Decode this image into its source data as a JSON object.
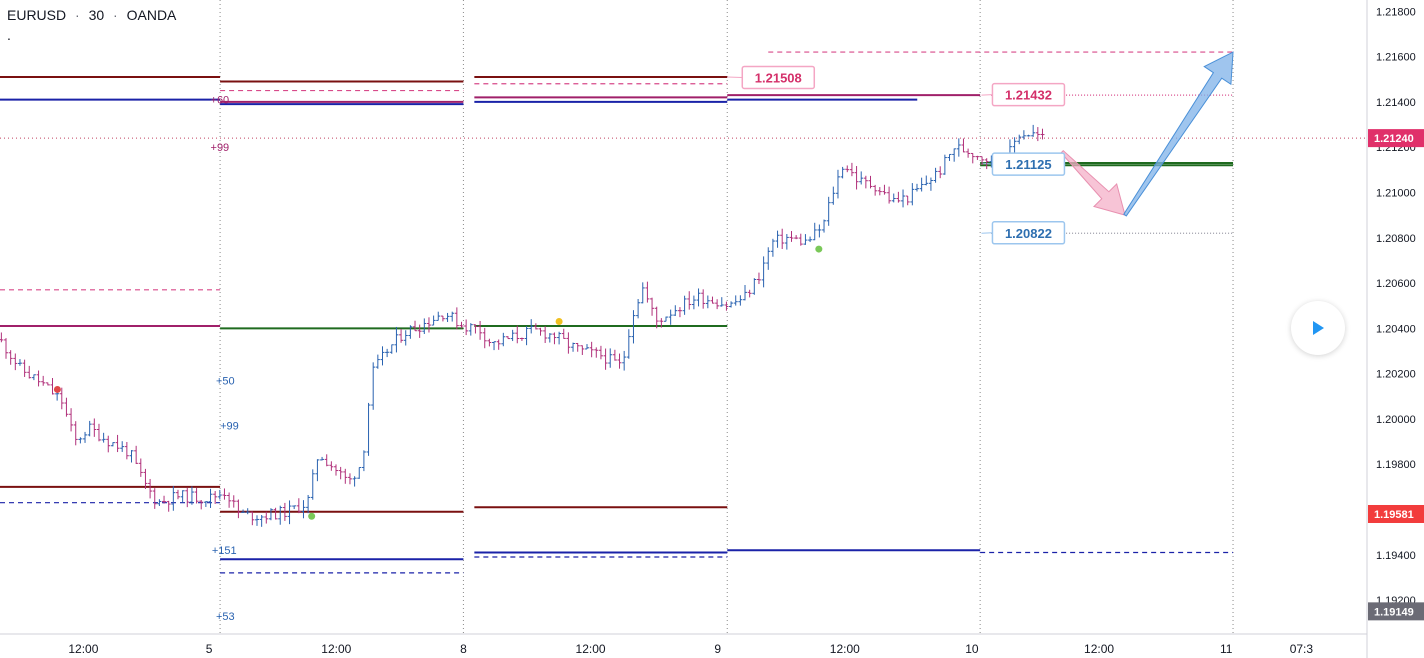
{
  "header": {
    "symbol": "EURUSD",
    "interval": "30",
    "broker": "OANDA",
    "separator": "·",
    "subline": "."
  },
  "colors": {
    "up": "#2962b0",
    "down": "#b0307a",
    "maroon": "#7a1010",
    "navy": "#1a22a8",
    "magenta": "#a0206a",
    "green": "#1f6b1f",
    "pink": "#d84a8a",
    "blue_arrow": "#7fb2e8",
    "pink_arrow": "#f4b0c8",
    "price_badge": "#e0306a",
    "low_badge": "#f23c3c",
    "gray_badge": "#6b6b75"
  },
  "chart_data": {
    "type": "candlestick",
    "y_range": [
      1.1905,
      1.2185
    ],
    "x_range": [
      0,
      100
    ],
    "y_ticks": [
      "1.21800",
      "1.21600",
      "1.21400",
      "1.21200",
      "1.21000",
      "1.20800",
      "1.20600",
      "1.20400",
      "1.20200",
      "1.20000",
      "1.19800",
      "1.19600",
      "1.19400",
      "1.19200"
    ],
    "y_tick_values": [
      1.218,
      1.216,
      1.214,
      1.212,
      1.21,
      1.208,
      1.206,
      1.204,
      1.202,
      1.2,
      1.198,
      1.196,
      1.194,
      1.192
    ],
    "x_ticks": [
      {
        "label": "12:00",
        "x": 6.1
      },
      {
        "label": "5",
        "x": 15.3
      },
      {
        "label": "12:00",
        "x": 24.6
      },
      {
        "label": "8",
        "x": 33.9
      },
      {
        "label": "12:00",
        "x": 43.2
      },
      {
        "label": "9",
        "x": 52.5
      },
      {
        "label": "12:00",
        "x": 61.8
      },
      {
        "label": "10",
        "x": 71.1
      },
      {
        "label": "12:00",
        "x": 80.4
      },
      {
        "label": "11",
        "x": 89.7
      },
      {
        "label": "07:3",
        "x": 95.2
      }
    ],
    "session_separators": [
      16.1,
      33.9,
      53.2,
      71.7,
      90.2
    ],
    "price_badges": [
      {
        "label": "1.21240",
        "value": 1.2124,
        "kind": "price"
      },
      {
        "label": "1.19581",
        "value": 1.1958,
        "kind": "low"
      },
      {
        "label": "1.19149",
        "value": 1.1915,
        "kind": "gray"
      }
    ],
    "current_price": 1.2124,
    "levels": [
      {
        "x1": 0,
        "x2": 16.1,
        "y": 1.2151,
        "color": "maroon",
        "dash": false
      },
      {
        "x1": 0,
        "x2": 16.1,
        "y": 1.2141,
        "color": "navy",
        "dash": false
      },
      {
        "x1": 0,
        "x2": 16.1,
        "y": 1.2057,
        "color": "pink",
        "dash": true
      },
      {
        "x1": 0,
        "x2": 16.1,
        "y": 1.2041,
        "color": "magenta",
        "dash": false
      },
      {
        "x1": 0,
        "x2": 16.1,
        "y": 1.197,
        "color": "maroon",
        "dash": false
      },
      {
        "x1": 0,
        "x2": 16.1,
        "y": 1.1963,
        "color": "navy",
        "dash": true
      },
      {
        "x1": 16.1,
        "x2": 33.9,
        "y": 1.2149,
        "color": "maroon",
        "dash": false
      },
      {
        "x1": 16.1,
        "x2": 33.9,
        "y": 1.2145,
        "color": "pink",
        "dash": true
      },
      {
        "x1": 16.1,
        "x2": 33.9,
        "y": 1.214,
        "color": "magenta",
        "dash": false
      },
      {
        "x1": 16.1,
        "x2": 33.9,
        "y": 1.2139,
        "color": "navy",
        "dash": false
      },
      {
        "x1": 16.1,
        "x2": 33.9,
        "y": 1.204,
        "color": "green",
        "dash": false
      },
      {
        "x1": 16.1,
        "x2": 33.9,
        "y": 1.1959,
        "color": "maroon",
        "dash": false
      },
      {
        "x1": 16.1,
        "x2": 33.9,
        "y": 1.1938,
        "color": "navy",
        "dash": false
      },
      {
        "x1": 16.1,
        "x2": 33.9,
        "y": 1.1932,
        "color": "navy",
        "dash": true
      },
      {
        "x1": 34.7,
        "x2": 53.2,
        "y": 1.2151,
        "color": "maroon",
        "dash": false
      },
      {
        "x1": 34.7,
        "x2": 53.2,
        "y": 1.2148,
        "color": "pink",
        "dash": true
      },
      {
        "x1": 34.7,
        "x2": 53.2,
        "y": 1.2142,
        "color": "magenta",
        "dash": false
      },
      {
        "x1": 34.7,
        "x2": 53.2,
        "y": 1.214,
        "color": "navy",
        "dash": false
      },
      {
        "x1": 34.7,
        "x2": 53.2,
        "y": 1.2041,
        "color": "green",
        "dash": false
      },
      {
        "x1": 34.7,
        "x2": 53.2,
        "y": 1.1961,
        "color": "maroon",
        "dash": false
      },
      {
        "x1": 34.7,
        "x2": 53.2,
        "y": 1.1941,
        "color": "navy",
        "dash": false
      },
      {
        "x1": 34.7,
        "x2": 53.2,
        "y": 1.1939,
        "color": "navy",
        "dash": true
      },
      {
        "x1": 53.2,
        "x2": 71.7,
        "y": 1.2143,
        "color": "magenta",
        "dash": false
      },
      {
        "x1": 53.2,
        "x2": 67.1,
        "y": 1.2141,
        "color": "navy",
        "dash": false
      },
      {
        "x1": 53.2,
        "x2": 71.7,
        "y": 1.1942,
        "color": "navy",
        "dash": false
      },
      {
        "x1": 71.7,
        "x2": 90.2,
        "y": 1.2113,
        "color": "green",
        "dash": false
      },
      {
        "x1": 71.7,
        "x2": 90.2,
        "y": 1.2112,
        "color": "green",
        "dash": false
      },
      {
        "x1": 71.7,
        "x2": 90.2,
        "y": 1.1941,
        "color": "navy",
        "dash": true
      },
      {
        "x1": 56.2,
        "x2": 90.2,
        "y": 1.2162,
        "color": "pink",
        "dash": true
      },
      {
        "x1": 72.5,
        "x2": 90.2,
        "y": 1.2143,
        "color": "pink",
        "dash": "dot"
      },
      {
        "x1": 72.5,
        "x2": 90.2,
        "y": 1.2082,
        "color": "gray",
        "dash": "dot"
      }
    ],
    "level_labels": [
      {
        "text": "+60",
        "x": 15.4,
        "y": 1.2141,
        "color": "magenta"
      },
      {
        "text": "+99",
        "x": 15.4,
        "y": 1.212,
        "color": "magenta"
      },
      {
        "text": "+50",
        "x": 15.8,
        "y": 1.2017,
        "color": "up"
      },
      {
        "text": "+99",
        "x": 16.1,
        "y": 1.1997,
        "color": "up"
      },
      {
        "text": "+151",
        "x": 15.5,
        "y": 1.1942,
        "color": "up"
      },
      {
        "text": "+53",
        "x": 15.8,
        "y": 1.1913,
        "color": "up"
      }
    ],
    "callouts": [
      {
        "label": "1.21508",
        "value": 1.21508,
        "x": 54.3,
        "anchor_x": 53.2,
        "anchor_y": 1.2151,
        "color": "pink"
      },
      {
        "label": "1.21432",
        "value": 1.21432,
        "x": 72.6,
        "anchor_x": 71.8,
        "anchor_y": 1.2143,
        "color": "pink"
      },
      {
        "label": "1.21125",
        "value": 1.21125,
        "x": 72.6,
        "anchor_x": 71.8,
        "anchor_y": 1.2113,
        "color": "up"
      },
      {
        "label": "1.20822",
        "value": 1.20822,
        "x": 72.6,
        "anchor_x": 71.8,
        "anchor_y": 1.2082,
        "color": "up"
      }
    ],
    "dots": [
      {
        "x": 4.2,
        "y": 1.2013,
        "color": "#e04848"
      },
      {
        "x": 22.8,
        "y": 1.1957,
        "color": "#7ac858"
      },
      {
        "x": 40.9,
        "y": 1.2043,
        "color": "#f0c020"
      },
      {
        "x": 59.9,
        "y": 1.2075,
        "color": "#7ac858"
      }
    ],
    "arrows": [
      {
        "x1": 77.7,
        "y1": 1.2118,
        "x2": 82.3,
        "y2": 1.209,
        "color": "pink_arrow"
      },
      {
        "x1": 82.3,
        "y1": 1.209,
        "x2": 90.2,
        "y2": 1.2162,
        "color": "blue_arrow"
      }
    ],
    "series": [
      {
        "name": "EURUSD",
        "anchors": [
          [
            0,
            1.2035
          ],
          [
            1.5,
            1.2022
          ],
          [
            3,
            1.2016
          ],
          [
            4.5,
            1.2008
          ],
          [
            5.5,
            1.199
          ],
          [
            6.5,
            1.1996
          ],
          [
            8,
            1.199
          ],
          [
            9.5,
            1.1985
          ],
          [
            10.5,
            1.1972
          ],
          [
            11.5,
            1.1963
          ],
          [
            13,
            1.1966
          ],
          [
            15.3,
            1.1965
          ],
          [
            16.5,
            1.1968
          ],
          [
            17.5,
            1.1958
          ],
          [
            19,
            1.1957
          ],
          [
            21,
            1.1959
          ],
          [
            22.5,
            1.1963
          ],
          [
            23.3,
            1.1985
          ],
          [
            24.5,
            1.1978
          ],
          [
            25.5,
            1.1972
          ],
          [
            26.5,
            1.1981
          ],
          [
            27.2,
            1.202
          ],
          [
            28.3,
            1.203
          ],
          [
            29.5,
            1.2038
          ],
          [
            31,
            1.2042
          ],
          [
            32.5,
            1.2047
          ],
          [
            33.9,
            1.2041
          ],
          [
            35,
            1.204
          ],
          [
            36,
            1.2033
          ],
          [
            37.5,
            1.2036
          ],
          [
            39,
            1.2039
          ],
          [
            40.5,
            1.2037
          ],
          [
            41.5,
            1.2033
          ],
          [
            42.5,
            1.203
          ],
          [
            44,
            1.2028
          ],
          [
            45.5,
            1.2023
          ],
          [
            46.2,
            1.2045
          ],
          [
            47,
            1.2058
          ],
          [
            48,
            1.2043
          ],
          [
            49.5,
            1.2049
          ],
          [
            51,
            1.2054
          ],
          [
            52.5,
            1.2052
          ],
          [
            53.3,
            1.205
          ],
          [
            54.5,
            1.2054
          ],
          [
            55.5,
            1.2063
          ],
          [
            56.5,
            1.2078
          ],
          [
            57.5,
            1.208
          ],
          [
            59,
            1.2078
          ],
          [
            60.2,
            1.2085
          ],
          [
            60.8,
            1.2098
          ],
          [
            61.7,
            1.2113
          ],
          [
            62.8,
            1.2105
          ],
          [
            64,
            1.2103
          ],
          [
            65.3,
            1.2096
          ],
          [
            66.5,
            1.2098
          ],
          [
            67.5,
            1.2103
          ],
          [
            68.8,
            1.211
          ],
          [
            69.8,
            1.212
          ],
          [
            71,
            1.2118
          ],
          [
            72.2,
            1.2115
          ],
          [
            73.5,
            1.2113
          ],
          [
            74.5,
            1.2126
          ],
          [
            75.5,
            1.2126
          ],
          [
            76.3,
            1.2124
          ]
        ]
      }
    ]
  },
  "controls": {
    "play_label": "Go to real-time"
  }
}
